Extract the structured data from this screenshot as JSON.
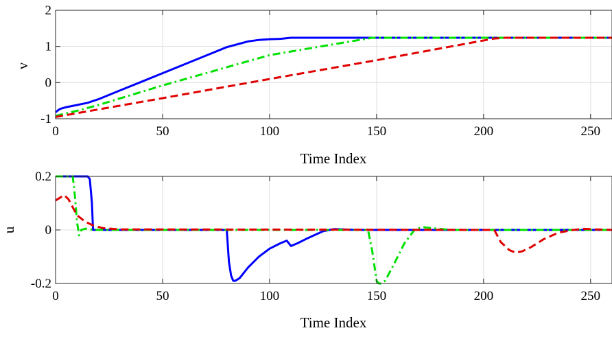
{
  "chart_data": [
    {
      "type": "line",
      "xlabel": "Time Index",
      "ylabel": "v",
      "xlim": [
        0,
        260
      ],
      "ylim": [
        -1,
        2
      ],
      "xticks": [
        0,
        50,
        100,
        150,
        200,
        250
      ],
      "yticks": [
        -1,
        0,
        1,
        2
      ],
      "xtick_labels": [
        "0",
        "50",
        "100",
        "150",
        "200",
        "250"
      ],
      "ytick_labels": [
        "-1",
        "0",
        "1",
        "2"
      ],
      "grid": true,
      "series": [
        {
          "style": "solid",
          "color": "#0000ff",
          "x": [
            0,
            2,
            5,
            10,
            15,
            17,
            20,
            30,
            40,
            50,
            60,
            70,
            80,
            85,
            90,
            95,
            100,
            105,
            110,
            150,
            200,
            260
          ],
          "y": [
            -0.82,
            -0.73,
            -0.68,
            -0.62,
            -0.56,
            -0.52,
            -0.46,
            -0.22,
            0.02,
            0.26,
            0.5,
            0.74,
            0.98,
            1.06,
            1.14,
            1.18,
            1.2,
            1.21,
            1.24,
            1.24,
            1.24,
            1.24
          ]
        },
        {
          "style": "dashdot",
          "color": "#00e000",
          "x": [
            0,
            10,
            20,
            50,
            100,
            148,
            150,
            200,
            260
          ],
          "y": [
            -0.92,
            -0.78,
            -0.62,
            -0.08,
            0.76,
            1.24,
            1.24,
            1.24,
            1.24
          ]
        },
        {
          "style": "dashed",
          "color": "#e00000",
          "x": [
            0,
            50,
            100,
            150,
            205,
            210,
            260
          ],
          "y": [
            -0.95,
            -0.43,
            0.1,
            0.62,
            1.22,
            1.24,
            1.24
          ]
        }
      ]
    },
    {
      "type": "line",
      "xlabel": "Time Index",
      "ylabel": "u",
      "xlim": [
        0,
        260
      ],
      "ylim": [
        -0.2,
        0.2
      ],
      "xticks": [
        0,
        50,
        100,
        150,
        200,
        250
      ],
      "yticks": [
        -0.2,
        0,
        0.2
      ],
      "xtick_labels": [
        "0",
        "50",
        "100",
        "150",
        "200",
        "250"
      ],
      "ytick_labels": [
        "-0.2",
        "0",
        "0.2"
      ],
      "grid": true,
      "series": [
        {
          "style": "solid",
          "color": "#0000ff",
          "x": [
            0,
            15,
            16,
            17,
            17.5,
            18,
            80,
            81,
            82,
            83,
            84,
            86,
            90,
            95,
            100,
            105,
            108,
            110,
            113,
            118,
            125,
            130,
            140,
            260
          ],
          "y": [
            0.2,
            0.2,
            0.19,
            0.1,
            0.0,
            0.0,
            0.0,
            -0.12,
            -0.17,
            -0.19,
            -0.19,
            -0.18,
            -0.14,
            -0.1,
            -0.07,
            -0.05,
            -0.04,
            -0.06,
            -0.05,
            -0.03,
            -0.005,
            0.003,
            0.0,
            0.0
          ]
        },
        {
          "style": "dashdot",
          "color": "#00e000",
          "x": [
            0,
            8,
            9,
            10,
            11,
            12,
            14,
            18,
            146,
            148,
            150,
            151,
            152,
            154,
            158,
            163,
            168,
            172,
            178,
            185,
            260
          ],
          "y": [
            0.2,
            0.2,
            0.13,
            0.03,
            -0.02,
            0.0,
            0.005,
            0.0,
            0.0,
            -0.08,
            -0.19,
            -0.2,
            -0.2,
            -0.19,
            -0.13,
            -0.05,
            0.003,
            0.01,
            0.005,
            0.0,
            0.0
          ]
        },
        {
          "style": "dashed",
          "color": "#e00000",
          "x": [
            0,
            2,
            4,
            6,
            8,
            10,
            14,
            18,
            22,
            30,
            205,
            208,
            212,
            215,
            218,
            222,
            228,
            235,
            242,
            247,
            252,
            260
          ],
          "y": [
            0.11,
            0.12,
            0.13,
            0.115,
            0.085,
            0.055,
            0.03,
            0.015,
            0.007,
            0.002,
            0.0,
            -0.045,
            -0.075,
            -0.085,
            -0.08,
            -0.065,
            -0.035,
            -0.01,
            0.0,
            0.004,
            0.002,
            0.0
          ]
        }
      ]
    }
  ]
}
